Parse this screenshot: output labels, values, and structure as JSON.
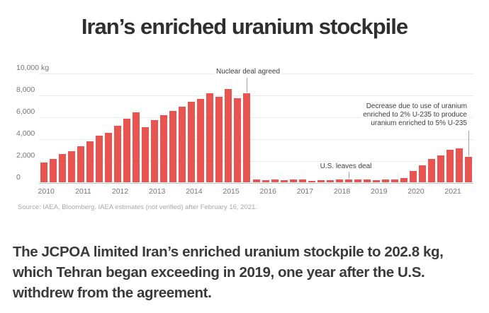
{
  "title": "Iran’s enriched uranium stockpile",
  "source_note": "Source: IAEA, Bloomberg. IAEA estimates (not verified) after February 16, 2021.",
  "caption": "The JCPOA limited Iran’s enriched uranium stockpile to 202.8 kg, which Tehran began exceeding in 2019, one year after the U.S. withdrew from the agreement.",
  "colors": {
    "bar": "#e8544f",
    "gridline": "#ebebeb",
    "baseline": "#c6c6c6",
    "axis_text": "#757575",
    "annotation_text": "#3d3d3d",
    "leader_line": "#a3a3a3",
    "title_text": "#2f2f2f",
    "source_text": "#a8a8a8"
  },
  "chart_data": {
    "type": "bar",
    "title": "Iran’s enriched uranium stockpile",
    "unit": "kg",
    "frequency": "quarterly",
    "start": "2010-Q1",
    "end": "2021-Q3",
    "ylim": [
      0,
      10000
    ],
    "grid": true,
    "y_ticks": [
      "10,000 kg",
      "8,000",
      "6,000",
      "4,000",
      "2,000",
      "0"
    ],
    "y_tick_values": [
      10000,
      8000,
      6000,
      4000,
      2000,
      0
    ],
    "year_labels": [
      "2010",
      "2011",
      "2012",
      "2013",
      "2014",
      "2015",
      "2016",
      "2017",
      "2018",
      "2019",
      "2020",
      "2021"
    ],
    "values": [
      1800,
      2150,
      2550,
      2850,
      3300,
      3750,
      4250,
      4500,
      5150,
      5800,
      6400,
      5000,
      5700,
      6100,
      6500,
      6900,
      7350,
      7600,
      8150,
      7800,
      8500,
      7700,
      8100,
      250,
      220,
      230,
      220,
      240,
      230,
      150,
      180,
      220,
      240,
      250,
      240,
      230,
      220,
      240,
      270,
      400,
      1000,
      1550,
      2100,
      2450,
      2950,
      3100,
      2300
    ],
    "annotations": [
      {
        "text": "Nuclear deal agreed",
        "bar_index": 22
      },
      {
        "text": "U.S. leaves deal",
        "bar_index": 33
      },
      {
        "text": "Decrease due to use of uranium\nenriched to 2% U-235 to produce\nuranium enriched to 5% U-235",
        "bar_index": 46
      }
    ]
  }
}
